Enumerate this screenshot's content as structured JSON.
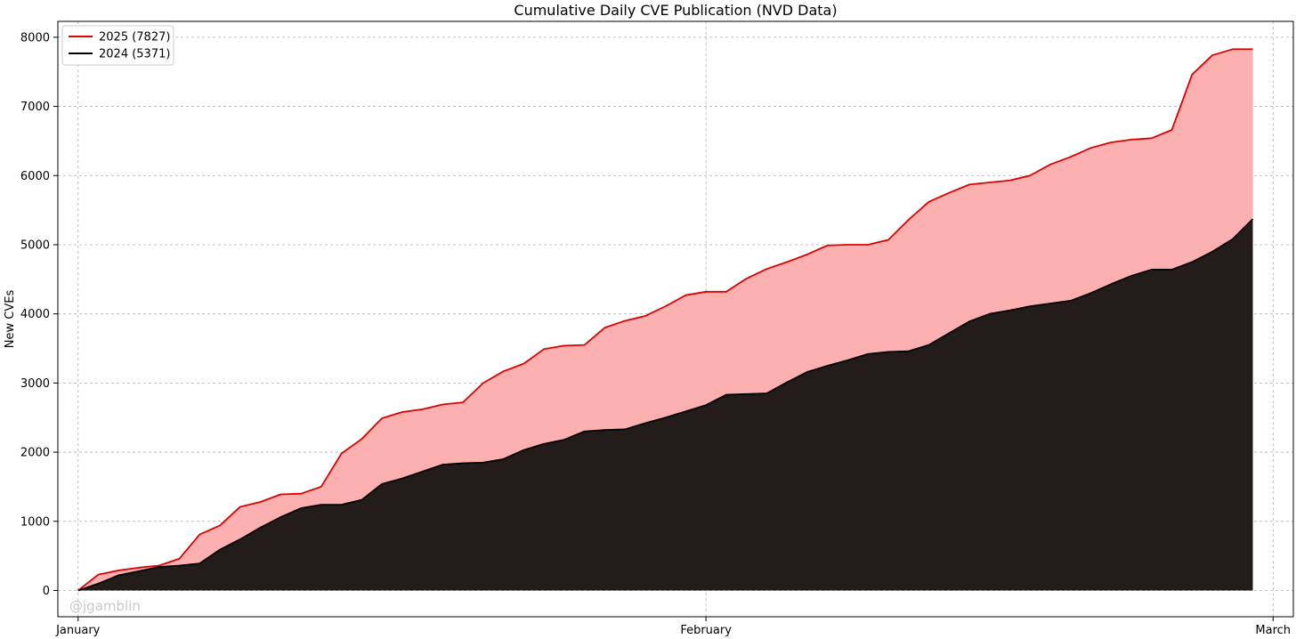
{
  "chart_data": {
    "type": "area",
    "title": "Cumulative Daily CVE Publication (NVD Data)",
    "xlabel": "",
    "ylabel": "New CVEs",
    "x_axis": "day-of-year (1 = January 1)",
    "xlim": [
      0,
      61
    ],
    "ylim": [
      -380,
      8230
    ],
    "x_ticks": [
      {
        "value": 1,
        "label": "January"
      },
      {
        "value": 32,
        "label": "February"
      },
      {
        "value": 60,
        "label": "March"
      }
    ],
    "y_ticks": [
      0,
      1000,
      2000,
      3000,
      4000,
      5000,
      6000,
      7000,
      8000
    ],
    "grid": true,
    "legend_position": "top-left",
    "watermark": "@jgamblin",
    "x": [
      1,
      2,
      3,
      4,
      5,
      6,
      7,
      8,
      9,
      10,
      11,
      12,
      13,
      14,
      15,
      16,
      17,
      18,
      19,
      20,
      21,
      22,
      23,
      24,
      25,
      26,
      27,
      28,
      29,
      30,
      31,
      32,
      33,
      34,
      35,
      36,
      37,
      38,
      39,
      40,
      41,
      42,
      43,
      44,
      45,
      46,
      47,
      48,
      49,
      50,
      51,
      52,
      53,
      54,
      55,
      56,
      57,
      58,
      59
    ],
    "series": [
      {
        "name": "2025 (7827)",
        "color": "#e00000",
        "fill": "#fcb0b0",
        "values": [
          0,
          230,
          290,
          330,
          360,
          460,
          810,
          940,
          1210,
          1280,
          1390,
          1400,
          1500,
          1980,
          2190,
          2490,
          2580,
          2620,
          2690,
          2720,
          3000,
          3170,
          3280,
          3490,
          3540,
          3550,
          3800,
          3900,
          3970,
          4110,
          4270,
          4320,
          4320,
          4510,
          4650,
          4750,
          4860,
          4990,
          5000,
          5000,
          5070,
          5360,
          5620,
          5750,
          5870,
          5900,
          5930,
          6000,
          6160,
          6270,
          6400,
          6480,
          6520,
          6540,
          6660,
          7460,
          7740,
          7827,
          7827
        ]
      },
      {
        "name": "2024 (5371)",
        "color": "#000000",
        "fill": "#241b1b",
        "values": [
          0,
          100,
          220,
          280,
          340,
          360,
          390,
          590,
          740,
          910,
          1060,
          1190,
          1240,
          1240,
          1310,
          1540,
          1620,
          1720,
          1820,
          1840,
          1850,
          1900,
          2030,
          2120,
          2180,
          2300,
          2320,
          2330,
          2420,
          2500,
          2590,
          2680,
          2830,
          2840,
          2850,
          3010,
          3160,
          3250,
          3330,
          3420,
          3450,
          3460,
          3550,
          3720,
          3890,
          4000,
          4050,
          4110,
          4150,
          4190,
          4300,
          4430,
          4550,
          4640,
          4640,
          4750,
          4900,
          5080,
          5371
        ]
      }
    ]
  }
}
